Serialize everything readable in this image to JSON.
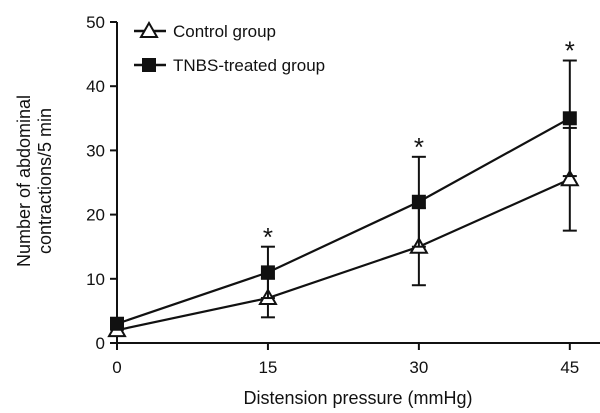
{
  "chart_data": {
    "type": "line",
    "title": "",
    "xlabel": "Distension pressure (mmHg)",
    "ylabel_lines": [
      "Number of abdominal",
      "contractions/5 min"
    ],
    "x": [
      0,
      15,
      30,
      45
    ],
    "xlim": [
      0,
      48
    ],
    "ylim": [
      0,
      50
    ],
    "xticks": [
      0,
      15,
      30,
      45
    ],
    "yticks": [
      0,
      10,
      20,
      30,
      40,
      50
    ],
    "grid": false,
    "legend_position": "top-left",
    "colors": {
      "line": "#111111",
      "marker_fill_control": "#ffffff",
      "marker_fill_tnbs": "#111111"
    },
    "series": [
      {
        "name": "Control group",
        "marker": "open-triangle",
        "values": [
          2,
          7,
          15,
          25.5
        ],
        "error": [
          0,
          3,
          6,
          8
        ]
      },
      {
        "name": "TNBS-treated group",
        "marker": "filled-square",
        "values": [
          3,
          11,
          22,
          35
        ],
        "error": [
          0,
          4,
          7,
          9
        ]
      }
    ],
    "annotations": [
      {
        "x": 15,
        "y": 17,
        "text": "*"
      },
      {
        "x": 30,
        "y": 31,
        "text": "*"
      },
      {
        "x": 45,
        "y": 46,
        "text": "*"
      }
    ]
  }
}
